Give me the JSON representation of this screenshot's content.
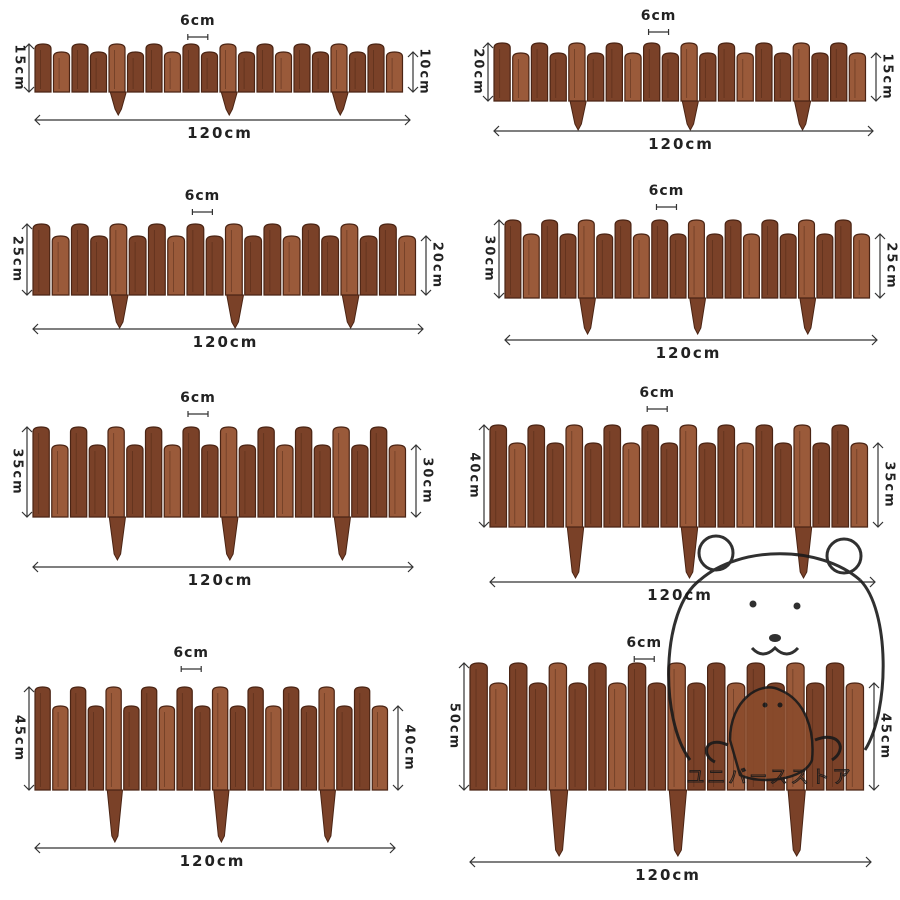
{
  "colors": {
    "wood_dark": "#4a2414",
    "wood_mid": "#7a4128",
    "wood_light": "#9a5a3a",
    "line": "#333333",
    "mascot_line": "#1a1a1a",
    "mascot_body": "#7a4128"
  },
  "panels": [
    {
      "picket_width": "6cm",
      "length": "120cm",
      "tall_height": "15cm",
      "short_height": "10cm"
    },
    {
      "picket_width": "6cm",
      "length": "120cm",
      "tall_height": "20cm",
      "short_height": "15cm"
    },
    {
      "picket_width": "6cm",
      "length": "120cm",
      "tall_height": "25cm",
      "short_height": "20cm"
    },
    {
      "picket_width": "6cm",
      "length": "120cm",
      "tall_height": "30cm",
      "short_height": "25cm"
    },
    {
      "picket_width": "6cm",
      "length": "120cm",
      "tall_height": "35cm",
      "short_height": "30cm"
    },
    {
      "picket_width": "6cm",
      "length": "120cm",
      "tall_height": "40cm",
      "short_height": "35cm"
    },
    {
      "picket_width": "6cm",
      "length": "120cm",
      "tall_height": "45cm",
      "short_height": "40cm"
    },
    {
      "picket_width": "6cm",
      "length": "120cm",
      "tall_height": "50cm",
      "short_height": "45cm"
    }
  ],
  "watermark": {
    "icon": "bear-mascot-icon",
    "text": "ユニバースストア"
  }
}
